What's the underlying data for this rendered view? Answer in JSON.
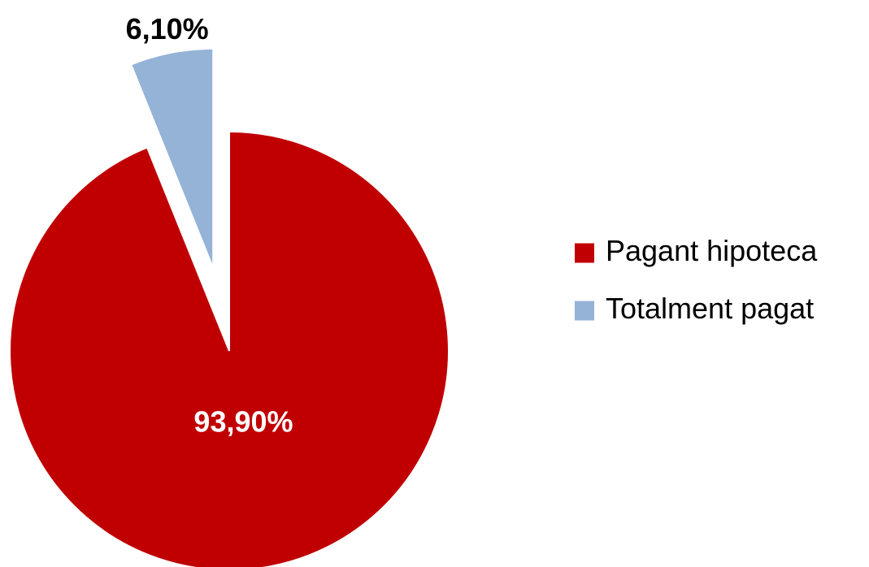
{
  "chart_data": {
    "type": "pie",
    "categories": [
      "Pagant hipoteca",
      "Totalment pagat"
    ],
    "values": [
      93.9,
      6.1
    ],
    "value_labels": [
      "93,90%",
      "6,10%"
    ],
    "colors": [
      "#c00000",
      "#95b3d7"
    ],
    "explode": [
      false,
      true
    ],
    "legend": "right"
  }
}
